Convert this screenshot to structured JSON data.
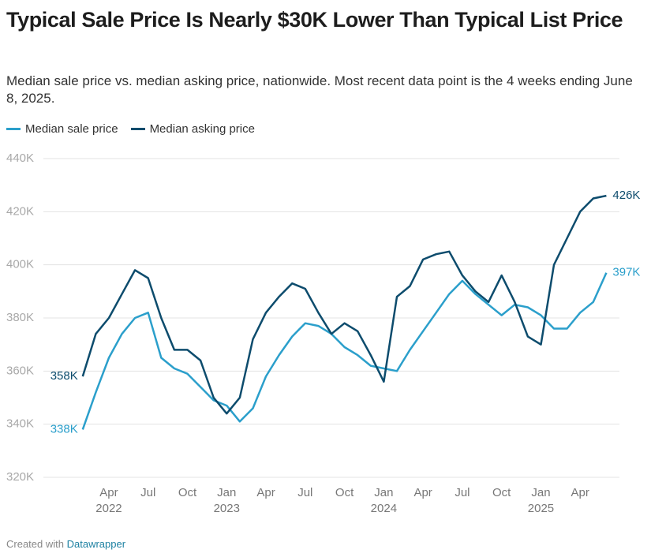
{
  "chart_data": {
    "type": "line",
    "title": "Typical Sale Price Is Nearly $30K Lower Than Typical List Price",
    "subtitle": "Median sale price vs. median asking price, nationwide. Most recent data point is the 4 weeks ending June 8, 2025.",
    "x": [
      "2022-02",
      "2022-03",
      "2022-04",
      "2022-05",
      "2022-06",
      "2022-07",
      "2022-08",
      "2022-09",
      "2022-10",
      "2022-11",
      "2022-12",
      "2023-01",
      "2023-02",
      "2023-03",
      "2023-04",
      "2023-05",
      "2023-06",
      "2023-07",
      "2023-08",
      "2023-09",
      "2023-10",
      "2023-11",
      "2023-12",
      "2024-01",
      "2024-02",
      "2024-03",
      "2024-04",
      "2024-05",
      "2024-06",
      "2024-07",
      "2024-08",
      "2024-09",
      "2024-10",
      "2024-11",
      "2024-12",
      "2025-01",
      "2025-02",
      "2025-03",
      "2025-04",
      "2025-05",
      "2025-06"
    ],
    "series": [
      {
        "name": "Median sale price",
        "color": "#2b9fcb",
        "values": [
          338000,
          352000,
          365000,
          374000,
          380000,
          382000,
          365000,
          361000,
          359000,
          354000,
          349000,
          347000,
          341000,
          346000,
          358000,
          366000,
          373000,
          378000,
          377000,
          374000,
          369000,
          366000,
          362000,
          361000,
          360000,
          368000,
          375000,
          382000,
          389000,
          394000,
          389000,
          385000,
          381000,
          385000,
          384000,
          381000,
          376000,
          376000,
          382000,
          386000,
          397000
        ],
        "value_labels": [
          "338K",
          null,
          null,
          null,
          null,
          null,
          null,
          null,
          null,
          null,
          null,
          null,
          null,
          null,
          null,
          null,
          null,
          null,
          null,
          null,
          null,
          null,
          null,
          null,
          null,
          null,
          null,
          null,
          null,
          null,
          null,
          null,
          null,
          null,
          null,
          null,
          null,
          null,
          null,
          null,
          "397K"
        ]
      },
      {
        "name": "Median asking price",
        "color": "#0d4c6d",
        "values": [
          358000,
          374000,
          380000,
          389000,
          398000,
          395000,
          380000,
          368000,
          368000,
          364000,
          350000,
          344000,
          350000,
          372000,
          382000,
          388000,
          393000,
          391000,
          382000,
          374000,
          378000,
          375000,
          366000,
          356000,
          388000,
          392000,
          402000,
          404000,
          405000,
          396000,
          390000,
          386000,
          396000,
          386000,
          373000,
          370000,
          400000,
          410000,
          420000,
          425000,
          426000
        ],
        "value_labels": [
          "358K",
          null,
          null,
          null,
          null,
          null,
          null,
          null,
          null,
          null,
          null,
          null,
          null,
          null,
          null,
          null,
          null,
          null,
          null,
          null,
          null,
          null,
          null,
          null,
          null,
          null,
          null,
          null,
          null,
          null,
          null,
          null,
          null,
          null,
          null,
          null,
          null,
          null,
          null,
          null,
          "426K"
        ]
      }
    ],
    "xlim": [
      "2021-11",
      "2025-07"
    ],
    "xticks": [
      {
        "value": "2022-04",
        "label": "Apr",
        "year": "2022"
      },
      {
        "value": "2022-07",
        "label": "Jul"
      },
      {
        "value": "2022-10",
        "label": "Oct"
      },
      {
        "value": "2023-01",
        "label": "Jan",
        "year": "2023"
      },
      {
        "value": "2023-04",
        "label": "Apr"
      },
      {
        "value": "2023-07",
        "label": "Jul"
      },
      {
        "value": "2023-10",
        "label": "Oct"
      },
      {
        "value": "2024-01",
        "label": "Jan",
        "year": "2024"
      },
      {
        "value": "2024-04",
        "label": "Apr"
      },
      {
        "value": "2024-07",
        "label": "Jul"
      },
      {
        "value": "2024-10",
        "label": "Oct"
      },
      {
        "value": "2025-01",
        "label": "Jan",
        "year": "2025"
      },
      {
        "value": "2025-04",
        "label": "Apr"
      }
    ],
    "ylim": [
      320000,
      440000
    ],
    "yticks": [
      {
        "value": 320000,
        "label": "320K"
      },
      {
        "value": 340000,
        "label": "340K"
      },
      {
        "value": 360000,
        "label": "360K"
      },
      {
        "value": 380000,
        "label": "380K"
      },
      {
        "value": 400000,
        "label": "400K"
      },
      {
        "value": 420000,
        "label": "420K"
      },
      {
        "value": 440000,
        "label": "440K"
      }
    ],
    "grid": true,
    "legend": "top-left"
  },
  "footer": {
    "prefix": "Created with",
    "link": "Datawrapper"
  }
}
